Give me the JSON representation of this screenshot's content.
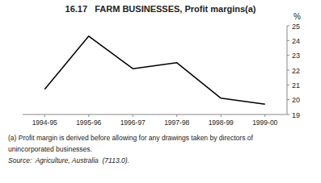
{
  "chart_data": {
    "type": "line",
    "title": "16.17   FARM BUSINESSES, Profit margins(a)",
    "categories": [
      "1994-95",
      "1995-96",
      "1996-97",
      "1997-98",
      "1998-99",
      "1999-00"
    ],
    "values": [
      20.7,
      24.3,
      22.1,
      22.5,
      20.1,
      19.7
    ],
    "y_label": "%",
    "ylim": [
      19,
      25
    ],
    "yticks": [
      19,
      20,
      21,
      22,
      23,
      24,
      25
    ],
    "color": "#000000",
    "grid": false,
    "annotations": [
      "(a) Profit margin is derived before allowing for any drawings taken by directors of",
      "unincorporated businesses.",
      "Source:  Agriculture, Australia  (7113.0)."
    ]
  }
}
